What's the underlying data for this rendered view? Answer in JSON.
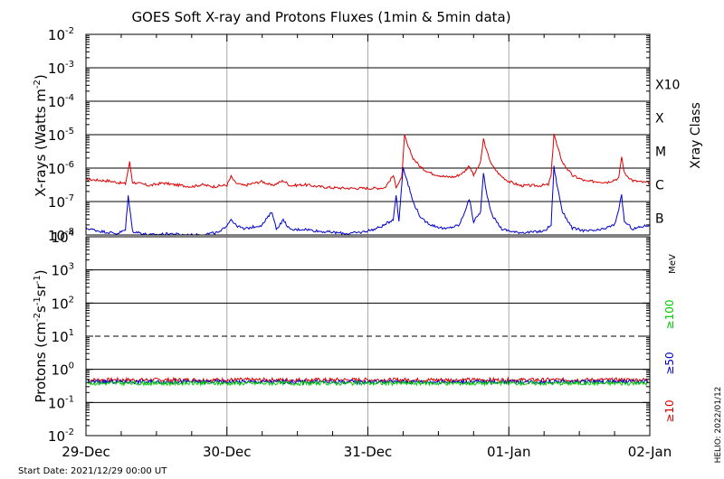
{
  "chart_data": {
    "type": "line",
    "title": "GOES Soft X-ray and Protons Fluxes   (1min & 5min data)",
    "x_ticks": [
      "29-Dec",
      "30-Dec",
      "31-Dec",
      "01-Jan",
      "02-Jan"
    ],
    "x_range": [
      "2021-12-29",
      "2022-01-02"
    ],
    "start_date": "Start Date: 2021/12/29 00:00 UT",
    "credit": "HELIO: 2022/01/12",
    "grid": true,
    "xray": {
      "ylabel": "X-rays (Watts m",
      "ylabel_sup": "-2",
      "ylabel_close": ")",
      "scale": "log",
      "ylim_exp": [
        -8,
        -2
      ],
      "tick_exps": [
        -8,
        -7,
        -6,
        -5,
        -4,
        -3,
        -2
      ],
      "tick_base": "10",
      "tick_sups": [
        "-8",
        "-7",
        "-6",
        "-5",
        "-4",
        "-3",
        "-2"
      ],
      "class_title": "Xray Class",
      "classes": [
        {
          "label": "X10",
          "exp": -3
        },
        {
          "label": "X",
          "exp": -4
        },
        {
          "label": "M",
          "exp": -5
        },
        {
          "label": "C",
          "exp": -6
        },
        {
          "label": "B",
          "exp": -7
        }
      ],
      "series": [
        {
          "color": "#dd0000",
          "points": [
            [
              0.0,
              4.6e-07
            ],
            [
              0.15,
              4.2e-07
            ],
            [
              0.28,
              3.4e-07
            ],
            [
              0.31,
              1.5e-06
            ],
            [
              0.33,
              3.8e-07
            ],
            [
              0.45,
              3e-07
            ],
            [
              0.55,
              3.6e-07
            ],
            [
              0.62,
              3.2e-07
            ],
            [
              0.75,
              2.8e-07
            ],
            [
              0.82,
              3.2e-07
            ],
            [
              0.9,
              2.8e-07
            ],
            [
              1.0,
              3.1e-07
            ],
            [
              1.03,
              5.6e-07
            ],
            [
              1.06,
              3.6e-07
            ],
            [
              1.12,
              3e-07
            ],
            [
              1.25,
              4e-07
            ],
            [
              1.32,
              3e-07
            ],
            [
              1.4,
              4.2e-07
            ],
            [
              1.45,
              3e-07
            ],
            [
              1.55,
              3.2e-07
            ],
            [
              1.65,
              2.8e-07
            ],
            [
              1.75,
              2.6e-07
            ],
            [
              1.85,
              2.5e-07
            ],
            [
              1.95,
              2.5e-07
            ],
            [
              2.05,
              2.5e-07
            ],
            [
              2.12,
              2.6e-07
            ],
            [
              2.18,
              6e-07
            ],
            [
              2.2,
              2.8e-07
            ],
            [
              2.24,
              5e-07
            ],
            [
              2.26,
              9.5e-06
            ],
            [
              2.28,
              5e-06
            ],
            [
              2.32,
              2e-06
            ],
            [
              2.38,
              1e-06
            ],
            [
              2.45,
              7e-07
            ],
            [
              2.55,
              5.5e-07
            ],
            [
              2.62,
              5.5e-07
            ],
            [
              2.68,
              7.5e-07
            ],
            [
              2.72,
              1.2e-06
            ],
            [
              2.75,
              6e-07
            ],
            [
              2.8,
              1.5e-06
            ],
            [
              2.82,
              7.5e-06
            ],
            [
              2.84,
              3.5e-06
            ],
            [
              2.88,
              1.2e-06
            ],
            [
              2.94,
              6e-07
            ],
            [
              3.0,
              4e-07
            ],
            [
              3.08,
              3e-07
            ],
            [
              3.15,
              3e-07
            ],
            [
              3.22,
              3e-07
            ],
            [
              3.28,
              3.2e-07
            ],
            [
              3.3,
              6e-07
            ],
            [
              3.32,
              1.1e-05
            ],
            [
              3.34,
              5e-06
            ],
            [
              3.38,
              1.5e-06
            ],
            [
              3.45,
              6e-07
            ],
            [
              3.55,
              4e-07
            ],
            [
              3.62,
              4e-07
            ],
            [
              3.7,
              3.8e-07
            ],
            [
              3.78,
              5e-07
            ],
            [
              3.8,
              2.2e-06
            ],
            [
              3.82,
              7e-07
            ],
            [
              3.88,
              4.2e-07
            ],
            [
              3.95,
              3.8e-07
            ],
            [
              4.0,
              3.6e-07
            ]
          ]
        },
        {
          "color": "#0000cc",
          "points": [
            [
              0.0,
              1.6e-08
            ],
            [
              0.1,
              1.3e-08
            ],
            [
              0.22,
              1.1e-08
            ],
            [
              0.28,
              1.4e-08
            ],
            [
              0.3,
              1.5e-07
            ],
            [
              0.33,
              1.3e-08
            ],
            [
              0.45,
              1e-08
            ],
            [
              0.6,
              1.1e-08
            ],
            [
              0.7,
              1e-08
            ],
            [
              0.8,
              1e-08
            ],
            [
              0.95,
              1.2e-08
            ],
            [
              1.0,
              2e-08
            ],
            [
              1.03,
              3e-08
            ],
            [
              1.06,
              2e-08
            ],
            [
              1.12,
              1.5e-08
            ],
            [
              1.25,
              2e-08
            ],
            [
              1.32,
              5e-08
            ],
            [
              1.35,
              1.5e-08
            ],
            [
              1.4,
              2.8e-08
            ],
            [
              1.45,
              1.4e-08
            ],
            [
              1.55,
              1.5e-08
            ],
            [
              1.65,
              1.3e-08
            ],
            [
              1.75,
              1.2e-08
            ],
            [
              1.85,
              1.1e-08
            ],
            [
              1.95,
              1.2e-08
            ],
            [
              2.05,
              1.5e-08
            ],
            [
              2.12,
              2e-08
            ],
            [
              2.18,
              3e-08
            ],
            [
              2.2,
              1.6e-07
            ],
            [
              2.22,
              2.5e-08
            ],
            [
              2.25,
              1.1e-06
            ],
            [
              2.28,
              4e-07
            ],
            [
              2.32,
              1e-07
            ],
            [
              2.38,
              3e-08
            ],
            [
              2.45,
              2e-08
            ],
            [
              2.55,
              1.5e-08
            ],
            [
              2.65,
              2e-08
            ],
            [
              2.7,
              7e-08
            ],
            [
              2.72,
              1.2e-07
            ],
            [
              2.75,
              2.5e-08
            ],
            [
              2.8,
              5e-08
            ],
            [
              2.82,
              7e-07
            ],
            [
              2.84,
              2e-07
            ],
            [
              2.88,
              4e-08
            ],
            [
              2.95,
              1.5e-08
            ],
            [
              3.05,
              1.2e-08
            ],
            [
              3.15,
              1.2e-08
            ],
            [
              3.25,
              1.3e-08
            ],
            [
              3.3,
              2e-08
            ],
            [
              3.32,
              1.1e-06
            ],
            [
              3.34,
              3.5e-07
            ],
            [
              3.38,
              5e-08
            ],
            [
              3.45,
              1.6e-08
            ],
            [
              3.55,
              1.3e-08
            ],
            [
              3.65,
              1.4e-08
            ],
            [
              3.75,
              2e-08
            ],
            [
              3.78,
              6e-08
            ],
            [
              3.8,
              1.5e-07
            ],
            [
              3.82,
              2.5e-08
            ],
            [
              3.88,
              1.5e-08
            ],
            [
              3.95,
              1.8e-08
            ],
            [
              4.0,
              2e-08
            ]
          ]
        }
      ]
    },
    "protons": {
      "ylabel": "Protons (cm",
      "ylabel_sup1": "-2",
      "ylabel_mid1": "s",
      "ylabel_sup2": "-1",
      "ylabel_mid2": "sr",
      "ylabel_sup3": "-1",
      "ylabel_close": ")",
      "scale": "log",
      "ylim_exp": [
        -2,
        4
      ],
      "tick_exps": [
        -2,
        -1,
        0,
        1,
        2,
        3,
        4
      ],
      "tick_base": "10",
      "tick_sups": [
        "-2",
        "-1",
        "0",
        "1",
        "2",
        "3",
        "4"
      ],
      "threshold_exp": 1,
      "unit_label": "MeV",
      "channels": [
        {
          "label": "≥100",
          "color": "#00cc00"
        },
        {
          "label": "≥50",
          "color": "#0000cc"
        },
        {
          "label": "≥10",
          "color": "#dd0000"
        }
      ],
      "series": [
        {
          "channel": "≥10",
          "color": "#dd0000",
          "level": 0.48
        },
        {
          "channel": "≥50",
          "color": "#0000cc",
          "level": 0.42
        },
        {
          "channel": "≥100",
          "color": "#00cc00",
          "level": 0.38
        }
      ]
    }
  }
}
